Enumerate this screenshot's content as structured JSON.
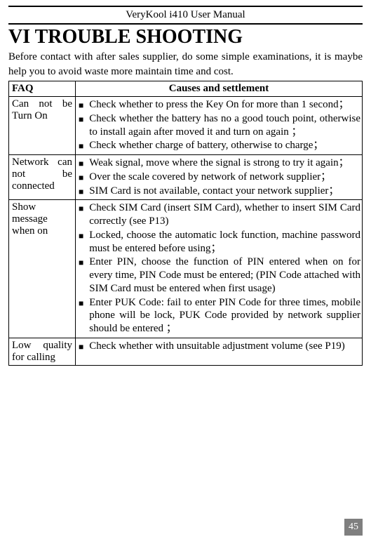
{
  "header": "VeryKool i410 User Manual",
  "title": "VI TROUBLE SHOOTING",
  "intro": "Before contact with after sales supplier, do some simple examinations, it is maybe help you to avoid waste more maintain time and cost.",
  "table": {
    "headers": {
      "faq": "FAQ",
      "causes": "Causes and settlement"
    },
    "rows": [
      {
        "faq_lines": [
          "Can not be",
          "Turn On"
        ],
        "items": [
          "Check whether to press the Key On for more than 1 second；",
          "Check whether the battery has no a good touch point, otherwise to install again after moved it and turn on again ；",
          "Check whether charge of battery, otherwise to charge；"
        ]
      },
      {
        "faq_lines": [
          "Network can",
          "not be",
          "connected"
        ],
        "items": [
          "Weak signal, move where the signal is strong to try it again；",
          "Over the scale covered by network of network supplier；",
          "SIM Card is not available, contact your network supplier；"
        ]
      },
      {
        "faq_lines": [
          "Show",
          "message",
          "when on"
        ],
        "items": [
          "Check SIM Card (insert SIM Card), whether to insert SIM Card correctly (see P13)",
          "Locked, choose the automatic lock function, machine password must be entered before using；",
          "Enter PIN, choose the function of PIN entered when on for every time, PIN Code must be entered; (PIN Code attached with SIM Card must be entered when first usage)",
          "Enter PUK Code: fail to enter PIN Code for three times, mobile phone will be lock, PUK Code provided by network supplier should be entered ；"
        ]
      },
      {
        "faq_lines": [
          "Low quality",
          "for calling"
        ],
        "items": [
          "Check whether with unsuitable adjustment volume (see P19)"
        ]
      }
    ]
  },
  "pageNumber": "45"
}
